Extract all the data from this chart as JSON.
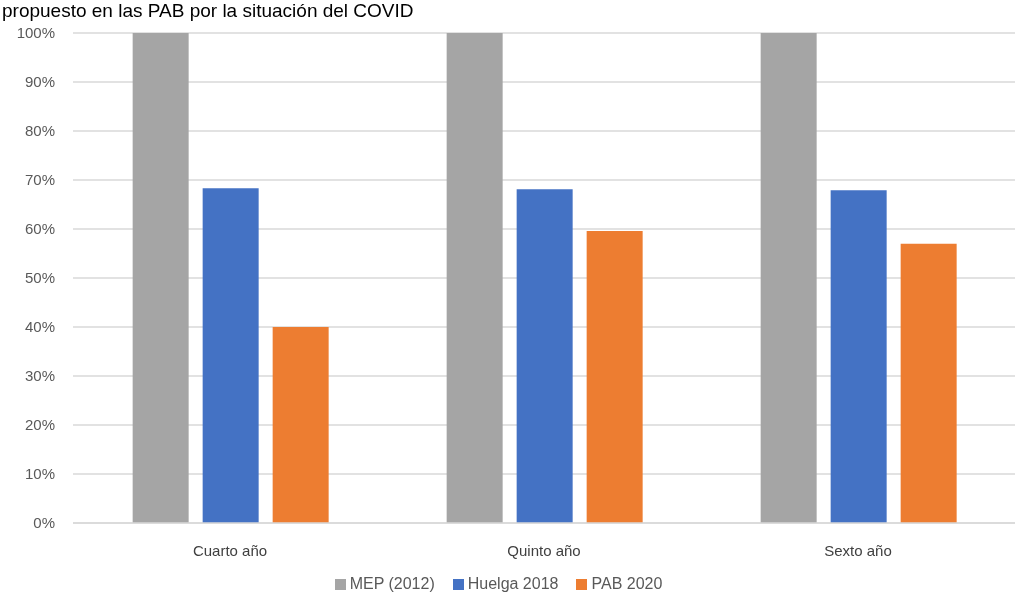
{
  "chart_data": {
    "type": "bar",
    "title": "propuesto en las PAB por la situación del COVID",
    "categories": [
      "Cuarto año",
      "Quinto año",
      "Sexto año"
    ],
    "series": [
      {
        "name": "MEP (2012)",
        "color": "#a5a5a5",
        "values": [
          100,
          100,
          100
        ]
      },
      {
        "name": "Huelga 2018",
        "color": "#4472c4",
        "values": [
          68.3,
          68.1,
          67.9
        ]
      },
      {
        "name": "PAB 2020",
        "color": "#ed7d31",
        "values": [
          40,
          59.6,
          57
        ]
      }
    ],
    "ylim": [
      0,
      100
    ],
    "yticks": [
      {
        "value": 0,
        "label": "0%"
      },
      {
        "value": 10,
        "label": "10%"
      },
      {
        "value": 20,
        "label": "20%"
      },
      {
        "value": 30,
        "label": "30%"
      },
      {
        "value": 40,
        "label": "40%"
      },
      {
        "value": 50,
        "label": "50%"
      },
      {
        "value": 60,
        "label": "60%"
      },
      {
        "value": 70,
        "label": "70%"
      },
      {
        "value": 80,
        "label": "80%"
      },
      {
        "value": 90,
        "label": "90%"
      },
      {
        "value": 100,
        "label": "100%"
      }
    ],
    "grid": "y",
    "legend": "bottom"
  }
}
